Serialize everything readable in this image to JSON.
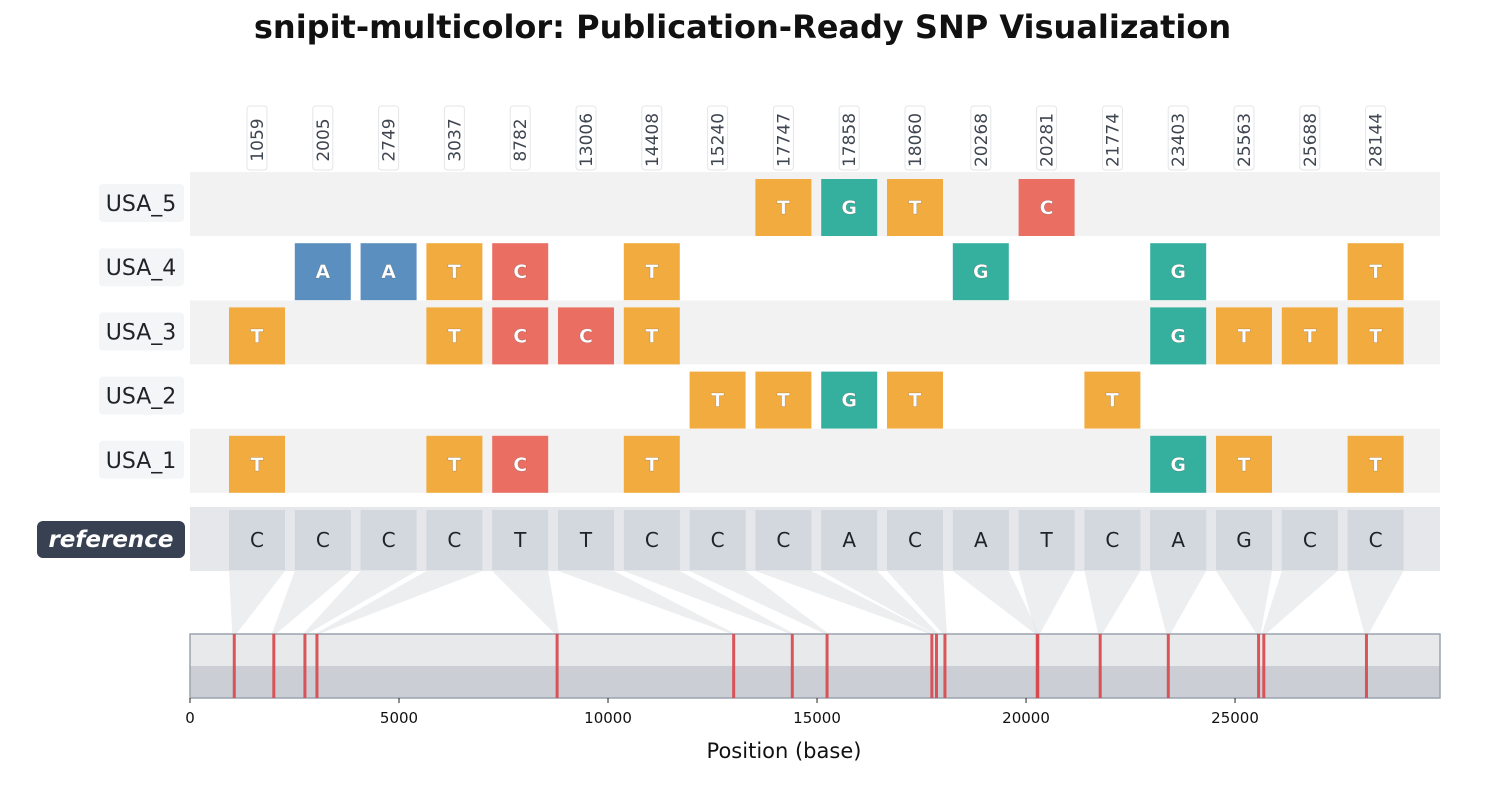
{
  "chart_data": {
    "type": "snp-alignment",
    "title": "snipit-multicolor: Publication-Ready SNP Visualization",
    "xlabel": "Position (base)",
    "xlim": [
      0,
      29903
    ],
    "xticks": [
      0,
      5000,
      10000,
      15000,
      20000,
      25000
    ],
    "positions": [
      1059,
      2005,
      2749,
      3037,
      8782,
      13006,
      14408,
      15240,
      17747,
      17858,
      18060,
      20268,
      20281,
      21774,
      23403,
      25563,
      25688,
      28144
    ],
    "reference": {
      "label": "reference",
      "bases": [
        "C",
        "C",
        "C",
        "C",
        "T",
        "T",
        "C",
        "C",
        "C",
        "A",
        "C",
        "A",
        "T",
        "C",
        "A",
        "G",
        "C",
        "C"
      ]
    },
    "sequences": [
      {
        "name": "USA_5",
        "snps": [
          null,
          null,
          null,
          null,
          null,
          null,
          null,
          null,
          "T",
          "G",
          "T",
          null,
          "C",
          null,
          null,
          null,
          null,
          null
        ]
      },
      {
        "name": "USA_4",
        "snps": [
          null,
          "A",
          "A",
          "T",
          "C",
          null,
          "T",
          null,
          null,
          null,
          null,
          "G",
          null,
          null,
          "G",
          null,
          null,
          "T"
        ]
      },
      {
        "name": "USA_3",
        "snps": [
          "T",
          null,
          null,
          "T",
          "C",
          "C",
          "T",
          null,
          null,
          null,
          null,
          null,
          null,
          null,
          "G",
          "T",
          "T",
          "T"
        ]
      },
      {
        "name": "USA_2",
        "snps": [
          null,
          null,
          null,
          null,
          null,
          null,
          null,
          "T",
          "T",
          "G",
          "T",
          null,
          null,
          "T",
          null,
          null,
          null,
          null
        ]
      },
      {
        "name": "USA_1",
        "snps": [
          "T",
          null,
          null,
          "T",
          "C",
          null,
          "T",
          null,
          null,
          null,
          null,
          null,
          null,
          null,
          "G",
          "T",
          null,
          "T"
        ]
      }
    ],
    "base_colors": {
      "A": "#5b8fc0",
      "C": "#ea6e62",
      "G": "#35b09f",
      "T": "#f2ab3f"
    },
    "row_stripe_colors": [
      "#f2f2f2",
      "#ffffff"
    ],
    "reference_row_color": "#e5e7eb",
    "reference_cell_color": "#d3d7de",
    "reference_label_bg": "#374151",
    "genome_marker_color": "#d9464b"
  }
}
